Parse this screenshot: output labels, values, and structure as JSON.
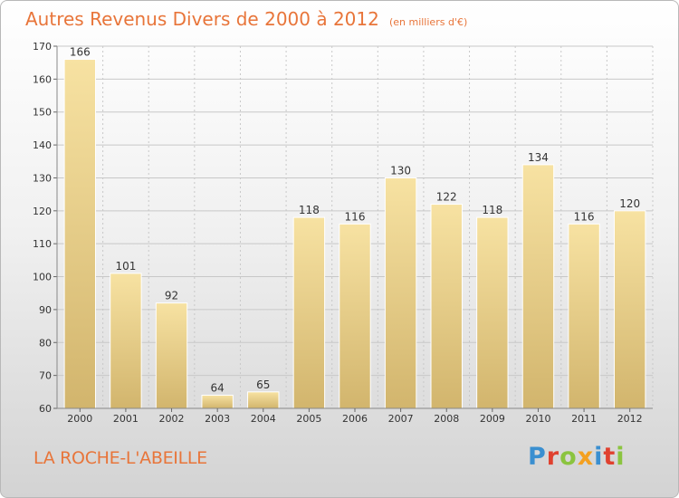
{
  "title": "Autres Revenus Divers de 2000 à 2012",
  "unit": "(en milliers d'€)",
  "commune": "LA ROCHE-L'ABEILLE",
  "logo": {
    "text": "Proxiti",
    "letters": [
      {
        "char": "P",
        "color": "#3a8fd0"
      },
      {
        "char": "r",
        "color": "#e0412f"
      },
      {
        "char": "o",
        "color": "#8bc43f"
      },
      {
        "char": "x",
        "color": "#f4a020"
      },
      {
        "char": "i",
        "color": "#3a8fd0"
      },
      {
        "char": "t",
        "color": "#e0412f"
      },
      {
        "char": "i",
        "color": "#8bc43f"
      }
    ]
  },
  "colors": {
    "title": "#e8753a",
    "bar_light": "#f7e2a2",
    "bar_dark": "#d2b56d",
    "grid": "#c8c8c8",
    "axis_text": "#333333"
  },
  "chart_data": {
    "type": "bar",
    "categories": [
      "2000",
      "2001",
      "2002",
      "2003",
      "2004",
      "2005",
      "2006",
      "2007",
      "2008",
      "2009",
      "2010",
      "2011",
      "2012"
    ],
    "values": [
      166,
      101,
      92,
      64,
      65,
      118,
      116,
      130,
      122,
      118,
      134,
      116,
      120
    ],
    "ylim": [
      60,
      170
    ],
    "yticks": [
      60,
      70,
      80,
      90,
      100,
      110,
      120,
      130,
      140,
      150,
      160,
      170
    ],
    "grid": true,
    "data_labels": true
  }
}
